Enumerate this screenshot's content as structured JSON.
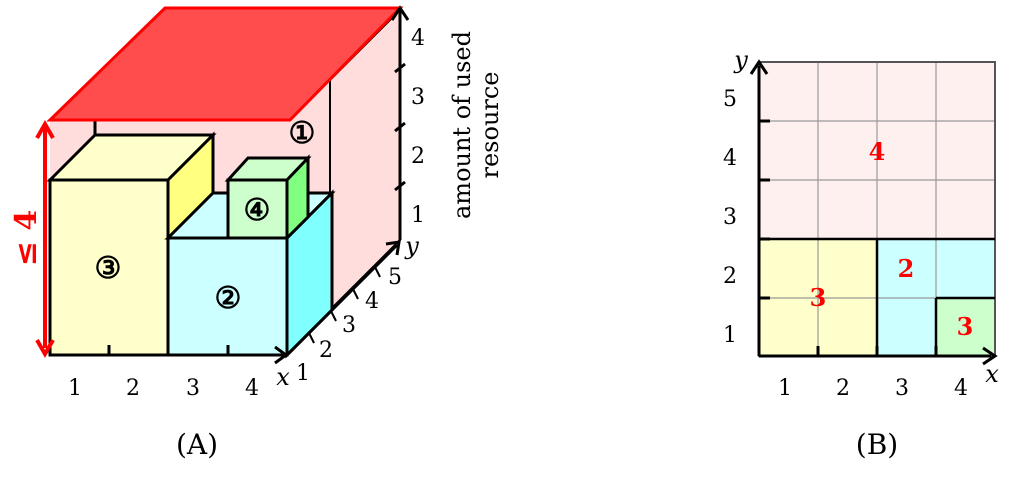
{
  "panel_a": {
    "caption": "(A)",
    "x_axis": {
      "name": "x",
      "ticks": [
        "1",
        "2",
        "3",
        "4"
      ]
    },
    "y_axis": {
      "name": "y",
      "ticks": [
        "1",
        "2",
        "3",
        "4",
        "5"
      ]
    },
    "z_axis": {
      "ticks": [
        "1",
        "2",
        "3",
        "4"
      ],
      "label_line1": "amount of used",
      "label_line2": "resource"
    },
    "limit_label": "≤ 4",
    "blocks": [
      {
        "id": "3",
        "label": "③",
        "color": "#ffffcc",
        "top_color": "#ffffcc",
        "side_color": "#ffff80"
      },
      {
        "id": "2",
        "label": "②",
        "color": "#ccffff",
        "top_color": "#ccffff",
        "side_color": "#80ffff"
      },
      {
        "id": "4",
        "label": "④",
        "color": "#ccffcc",
        "top_color": "#ccffcc",
        "side_color": "#80ff80"
      },
      {
        "id": "1",
        "label": "①",
        "color": "#ffdddd",
        "top_color": "#ff4d4d",
        "side_color": "#ffdddd"
      }
    ],
    "limit_color": "#ff0000"
  },
  "panel_b": {
    "caption": "(B)",
    "x_axis": {
      "name": "x",
      "ticks": [
        "1",
        "2",
        "3",
        "4"
      ]
    },
    "y_axis": {
      "name": "y",
      "ticks": [
        "1",
        "2",
        "3",
        "4",
        "5"
      ]
    },
    "regions": [
      {
        "label": "4",
        "color": "#fff0f0"
      },
      {
        "label": "3",
        "color": "#ffffcc"
      },
      {
        "label": "2",
        "color": "#ccffff"
      },
      {
        "label": "3",
        "color": "#ccffcc"
      }
    ]
  }
}
